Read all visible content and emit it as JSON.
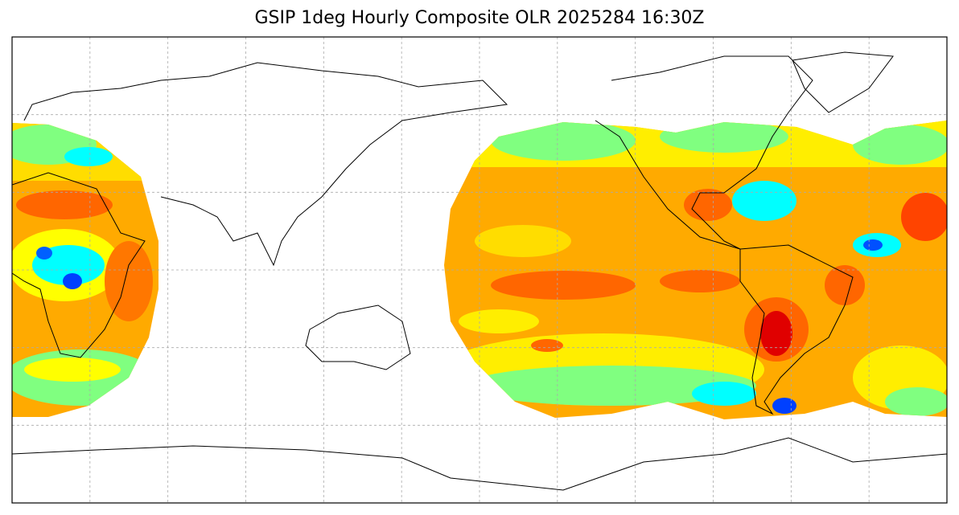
{
  "title": "GSIP 1deg Hourly Composite OLR 2025284 16:30Z",
  "map": {
    "projection": "PlateCarree",
    "extent_lon": [
      -180,
      180
    ],
    "extent_lat": [
      -90,
      90
    ],
    "central_longitude": 150,
    "gridlines": {
      "visible": true,
      "lon_step_deg": 30,
      "lat_step_deg": 30,
      "style": "dashed",
      "color": "#aaaaaa"
    },
    "coastlines": {
      "visible": true,
      "color": "#000000"
    },
    "colormap": [
      "#0040ff",
      "#00c8ff",
      "#00ffff",
      "#80ff80",
      "#ffff00",
      "#ffaa00",
      "#ff6600",
      "#e00000"
    ],
    "missing_color": "#ffffff"
  }
}
